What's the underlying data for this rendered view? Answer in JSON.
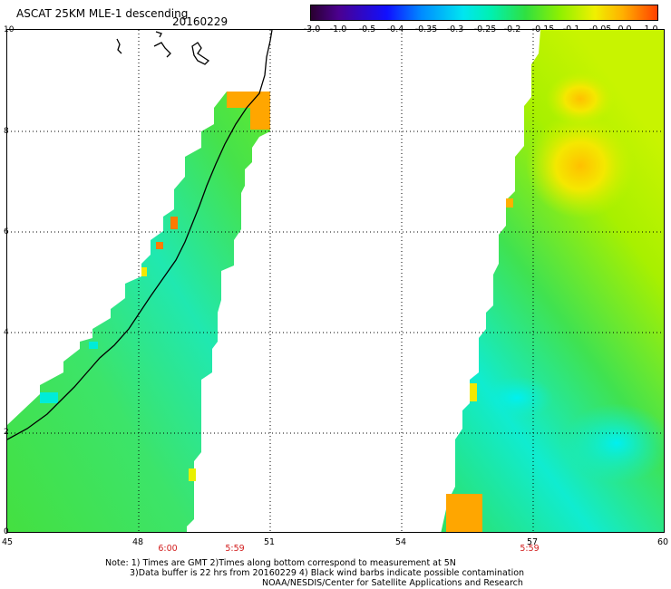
{
  "header": {
    "title": "ASCAT 25KM MLE-1 descending",
    "date": "20160229"
  },
  "colorbar": {
    "labels": [
      "-3.0",
      "-1.0",
      "-0.5",
      "-0.4",
      "-0.35",
      "-0.3",
      "-0.25",
      "-0.2",
      "-0.15",
      "-0.1",
      "-0.05",
      "0.0",
      "1.0"
    ],
    "colors": [
      "#2a0030",
      "#4b0090",
      "#1010ff",
      "#008cff",
      "#00e6f0",
      "#00f0b0",
      "#30e040",
      "#90f000",
      "#f0f000",
      "#ffb000",
      "#ff4000"
    ]
  },
  "map": {
    "x_ticks": [
      "45",
      "48",
      "51",
      "54",
      "57",
      "60"
    ],
    "y_ticks": [
      "0",
      "2",
      "4",
      "6",
      "8",
      "10"
    ],
    "times": [
      "6:00",
      "5:59",
      "5:59"
    ]
  },
  "notes": {
    "line1": "Note: 1) Times are GMT 2)Times along bottom correspond to measurement at 5N",
    "line2": "3)Data buffer is 22 hrs from 20160229 4) Black wind barbs indicate possible contamination",
    "line3": "NOAA/NESDIS/Center for Satellite Applications and Research"
  }
}
